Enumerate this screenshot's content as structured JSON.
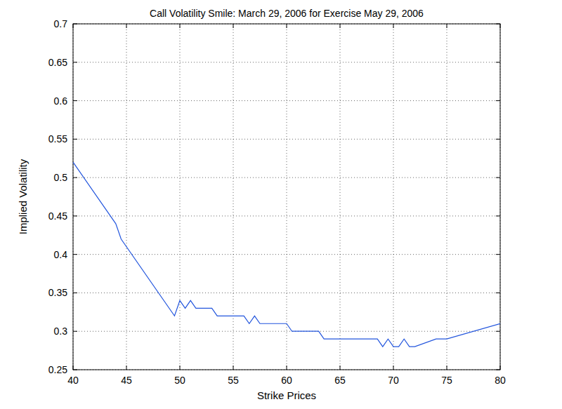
{
  "chart_data": {
    "type": "line",
    "title": "Call Volatility Smile: March 29, 2006 for Exercise May 29, 2006",
    "x_label": "Strike Prices",
    "y_label": "Implied Volatility",
    "x": [
      40,
      44,
      44.5,
      49.5,
      50,
      50.5,
      51,
      51.5,
      53,
      53.5,
      56,
      56.5,
      57,
      57.5,
      60,
      60.5,
      63,
      63.5,
      68.5,
      69,
      69.5,
      70,
      70.5,
      71,
      71.5,
      72,
      74,
      75,
      80
    ],
    "series": [
      {
        "name": "Implied Volatility",
        "color": "#2255dd",
        "values": [
          0.52,
          0.44,
          0.42,
          0.32,
          0.34,
          0.33,
          0.34,
          0.33,
          0.33,
          0.32,
          0.32,
          0.31,
          0.32,
          0.31,
          0.31,
          0.3,
          0.3,
          0.29,
          0.29,
          0.28,
          0.29,
          0.28,
          0.28,
          0.29,
          0.28,
          0.28,
          0.29,
          0.29,
          0.31
        ]
      }
    ],
    "xlim": [
      40,
      80
    ],
    "xticks": [
      40,
      45,
      50,
      55,
      60,
      65,
      70,
      75,
      80
    ],
    "ylim": [
      0.25,
      0.7
    ],
    "yticks": [
      0.25,
      0.3,
      0.35,
      0.4,
      0.45,
      0.5,
      0.55,
      0.6,
      0.65,
      0.7
    ],
    "grid": true
  }
}
